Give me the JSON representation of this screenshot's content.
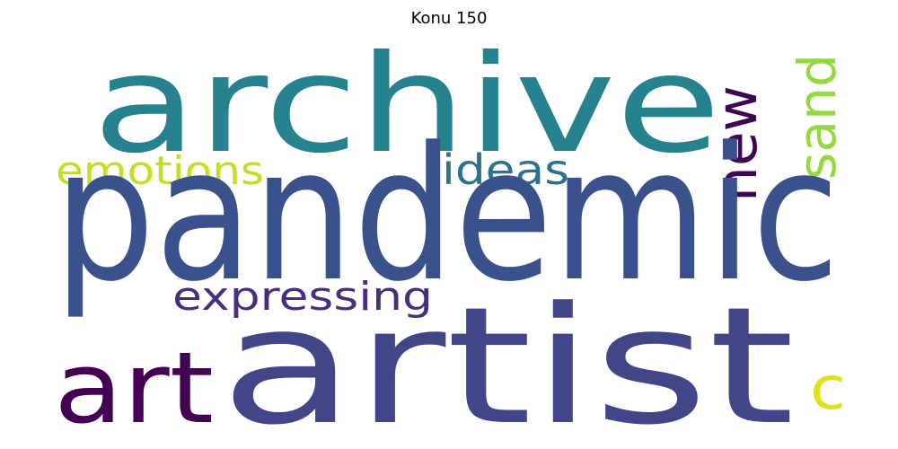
{
  "title": "Konu 150",
  "words": [
    {
      "text": "pandemic",
      "color": "#3b518b"
    },
    {
      "text": "artist",
      "color": "#404688"
    },
    {
      "text": "archive",
      "color": "#26828e"
    },
    {
      "text": "art",
      "color": "#440154"
    },
    {
      "text": "new",
      "color": "#3e0751"
    },
    {
      "text": "sand",
      "color": "#95d840"
    },
    {
      "text": "emotions",
      "color": "#c0df25"
    },
    {
      "text": "ideas",
      "color": "#2c728e"
    },
    {
      "text": "expressing",
      "color": "#472f7d"
    },
    {
      "text": "c",
      "color": "#dde318"
    }
  ]
}
